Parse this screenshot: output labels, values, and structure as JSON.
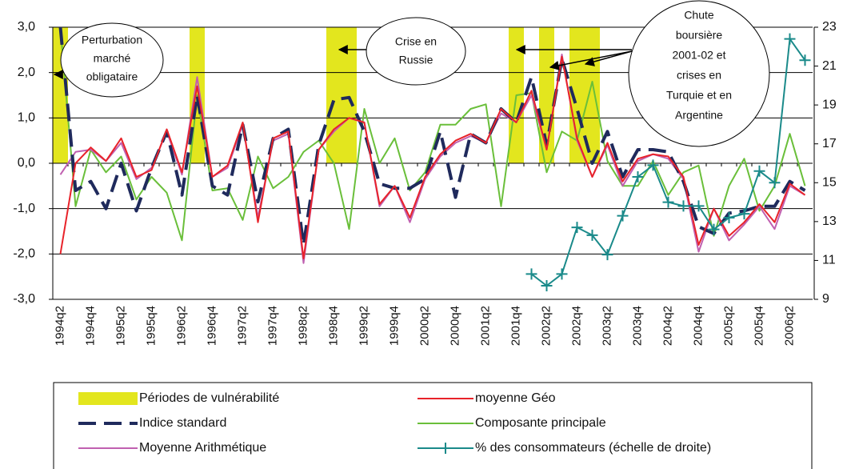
{
  "chart_data": {
    "type": "line",
    "categories": [
      "1994q2",
      null,
      "1994q4",
      null,
      "1995q2",
      null,
      "1995q4",
      null,
      "1996q2",
      null,
      "1996q4",
      null,
      "1997q2",
      null,
      "1997q4",
      null,
      "1998q2",
      null,
      "1998q4",
      null,
      "1999q2",
      null,
      "1999q4",
      null,
      "2000q2",
      null,
      "2000q4",
      null,
      "2001q2",
      null,
      "2001q4",
      null,
      "2002q2",
      null,
      "2002q4",
      null,
      "2003q2",
      null,
      "2003q4",
      null,
      "2004q2",
      null,
      "2004q4",
      null,
      "2005q2",
      null,
      "2005q4",
      null,
      "2006q2",
      null
    ],
    "ylim": [
      -3,
      3
    ],
    "yticks": [
      {
        "value": -3,
        "label": "-3,0"
      },
      {
        "value": -2,
        "label": "-2,0"
      },
      {
        "value": -1,
        "label": "-1,0"
      },
      {
        "value": 0,
        "label": "0,0"
      },
      {
        "value": 1,
        "label": "1,0"
      },
      {
        "value": 2,
        "label": "2,0"
      },
      {
        "value": 3,
        "label": "3,0"
      }
    ],
    "y2lim": [
      9,
      23
    ],
    "y2ticks": [
      9,
      11,
      13,
      15,
      17,
      19,
      21,
      23
    ],
    "grid": true,
    "series": [
      {
        "name": "Périodes de vulnérabilité",
        "type": "bar",
        "color": "#e3e61e",
        "values": [
          3,
          null,
          null,
          null,
          null,
          null,
          null,
          null,
          null,
          3,
          null,
          null,
          null,
          null,
          null,
          null,
          null,
          null,
          3,
          3,
          null,
          null,
          null,
          null,
          null,
          null,
          null,
          null,
          null,
          null,
          3,
          null,
          3,
          null,
          3,
          3,
          null,
          null,
          null,
          null,
          null,
          null,
          null,
          null,
          null,
          null,
          null,
          null,
          null,
          null
        ]
      },
      {
        "name": "moyenne Géo",
        "color": "#e8232a",
        "values": [
          -2.0,
          0.0,
          0.35,
          0.05,
          0.55,
          -0.3,
          -0.15,
          0.75,
          -0.2,
          1.7,
          -0.3,
          -0.05,
          0.9,
          -1.3,
          0.55,
          0.7,
          -2.1,
          0.3,
          0.75,
          1.0,
          0.9,
          -0.9,
          -0.5,
          -1.2,
          -0.3,
          0.2,
          0.5,
          0.65,
          0.45,
          1.2,
          0.9,
          1.6,
          0.3,
          2.35,
          0.55,
          -0.3,
          0.45,
          -0.4,
          0.1,
          0.2,
          0.15,
          -0.3,
          -1.8,
          -1.0,
          -1.6,
          -1.3,
          -0.9,
          -1.3,
          -0.45,
          -0.7
        ]
      },
      {
        "name": "Indice standard",
        "color": "#1f2a5c",
        "dashed": true,
        "values": [
          3.0,
          -0.6,
          -0.4,
          -1.0,
          0.0,
          -1.05,
          -0.1,
          0.7,
          -0.7,
          1.5,
          -0.5,
          -0.7,
          0.85,
          -0.85,
          0.55,
          0.75,
          -1.8,
          0.4,
          1.4,
          1.45,
          0.7,
          -0.45,
          -0.55,
          -0.55,
          -0.35,
          0.7,
          -0.75,
          0.65,
          0.45,
          1.2,
          0.9,
          1.9,
          0.4,
          2.3,
          1.2,
          0.0,
          0.7,
          -0.3,
          0.3,
          0.3,
          0.25,
          -0.4,
          -1.4,
          -1.55,
          -1.1,
          -1.05,
          -0.95,
          -0.95,
          -0.4,
          -0.6
        ]
      },
      {
        "name": "Composante principale",
        "color": "#6abf3a",
        "values": [
          3.0,
          -0.95,
          0.3,
          -0.2,
          0.15,
          -0.8,
          -0.3,
          -0.65,
          -1.7,
          1.5,
          -0.6,
          -0.55,
          -1.25,
          0.15,
          -0.55,
          -0.3,
          0.25,
          0.5,
          0.0,
          -1.45,
          1.2,
          0.0,
          0.55,
          -0.6,
          -0.2,
          0.85,
          0.85,
          1.2,
          1.3,
          -0.95,
          1.5,
          1.55,
          -0.2,
          0.7,
          0.5,
          1.8,
          0.05,
          -0.5,
          -0.5,
          0.05,
          -0.7,
          -0.2,
          -0.05,
          -1.6,
          -0.5,
          0.1,
          -1.05,
          -0.5,
          0.65,
          -0.5
        ]
      },
      {
        "name": "Moyenne Arithmétique",
        "color": "#c060b0",
        "values": [
          -0.25,
          0.25,
          0.3,
          0.05,
          0.45,
          -0.35,
          -0.1,
          0.7,
          -0.25,
          1.9,
          -0.3,
          -0.1,
          0.85,
          -1.2,
          0.5,
          0.65,
          -2.2,
          0.3,
          0.7,
          1.0,
          0.9,
          -0.95,
          -0.5,
          -1.3,
          -0.35,
          0.15,
          0.45,
          0.6,
          0.45,
          1.1,
          0.9,
          1.5,
          0.3,
          2.4,
          0.5,
          -0.3,
          0.4,
          -0.5,
          0.05,
          0.2,
          0.1,
          -0.35,
          -1.95,
          -1.0,
          -1.7,
          -1.35,
          -0.95,
          -1.45,
          -0.5,
          -0.7
        ]
      },
      {
        "name": "% des consommateurs (échelle de droite)",
        "color": "#1a8a8a",
        "axis": "y2",
        "marker": "plus",
        "values": [
          null,
          null,
          null,
          null,
          null,
          null,
          null,
          null,
          null,
          null,
          null,
          null,
          null,
          null,
          null,
          null,
          null,
          null,
          null,
          null,
          null,
          null,
          null,
          null,
          null,
          null,
          null,
          null,
          null,
          null,
          null,
          10.3,
          9.7,
          10.3,
          12.7,
          12.3,
          11.3,
          13.3,
          15.3,
          15.9,
          14.0,
          13.8,
          13.8,
          12.6,
          13.2,
          13.4,
          15.6,
          15.0,
          22.4,
          21.3
        ]
      }
    ],
    "annotations": [
      {
        "lines": [
          "Perturbation",
          "marché",
          "obligataire"
        ]
      },
      {
        "lines": [
          "Crise en",
          "Russie"
        ]
      },
      {
        "lines": [
          "Chute",
          "boursière",
          "2001-02 et",
          "crises en",
          "Turquie et en",
          "Argentine"
        ]
      }
    ]
  }
}
